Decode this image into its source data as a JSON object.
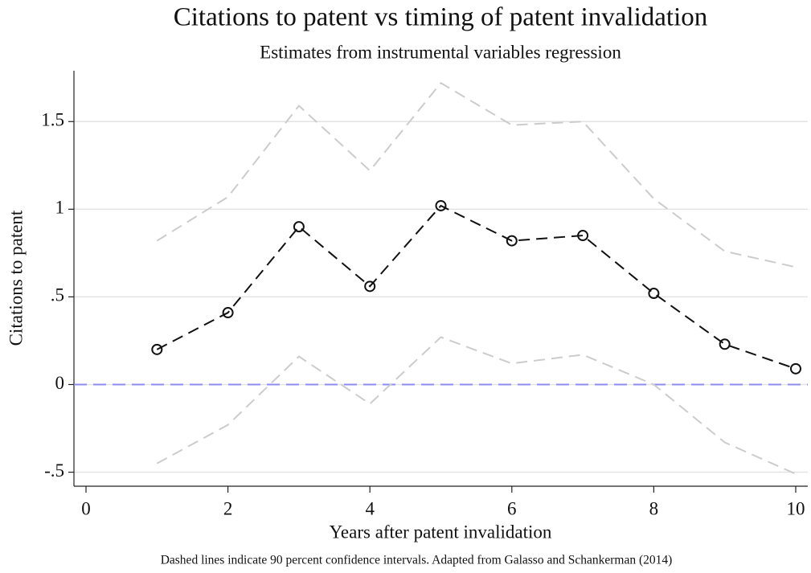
{
  "chart_data": {
    "type": "line",
    "title": "Citations to patent vs timing of patent invalidation",
    "subtitle": "Estimates from instrumental variables regression",
    "x_label": "Years after patent invalidation",
    "y_label": "Citations to patent",
    "note": "Dashed lines indicate 90 percent confidence intervals. Adapted from Galasso and Schankerman (2014)",
    "x": [
      1,
      2,
      3,
      4,
      5,
      6,
      7,
      8,
      9,
      10
    ],
    "series": [
      {
        "color": "#111111",
        "markers": true,
        "values": [
          0.2,
          0.41,
          0.9,
          0.56,
          1.02,
          0.82,
          0.85,
          0.52,
          0.23,
          0.09
        ]
      },
      {
        "color": "#cccccc",
        "markers": false,
        "values": [
          0.82,
          1.07,
          1.59,
          1.22,
          1.72,
          1.48,
          1.5,
          1.06,
          0.76,
          0.67
        ]
      },
      {
        "color": "#cccccc",
        "markers": false,
        "values": [
          -0.45,
          -0.23,
          0.16,
          -0.11,
          0.27,
          0.12,
          0.17,
          0.0,
          -0.33,
          -0.51
        ]
      }
    ],
    "xlim": [
      -0.17,
      10.17
    ],
    "xticks": [
      0,
      2,
      4,
      6,
      8,
      10
    ],
    "ylim": [
      -0.58,
      1.79
    ],
    "yticks": [
      {
        "value": -0.5,
        "label": "-.5"
      },
      0,
      {
        "value": 0.5,
        "label": ".5"
      },
      1,
      1.5
    ],
    "grid": true,
    "line_style": "dashed",
    "reference_line": {
      "value": 0,
      "color": "#8c8cf0"
    }
  }
}
